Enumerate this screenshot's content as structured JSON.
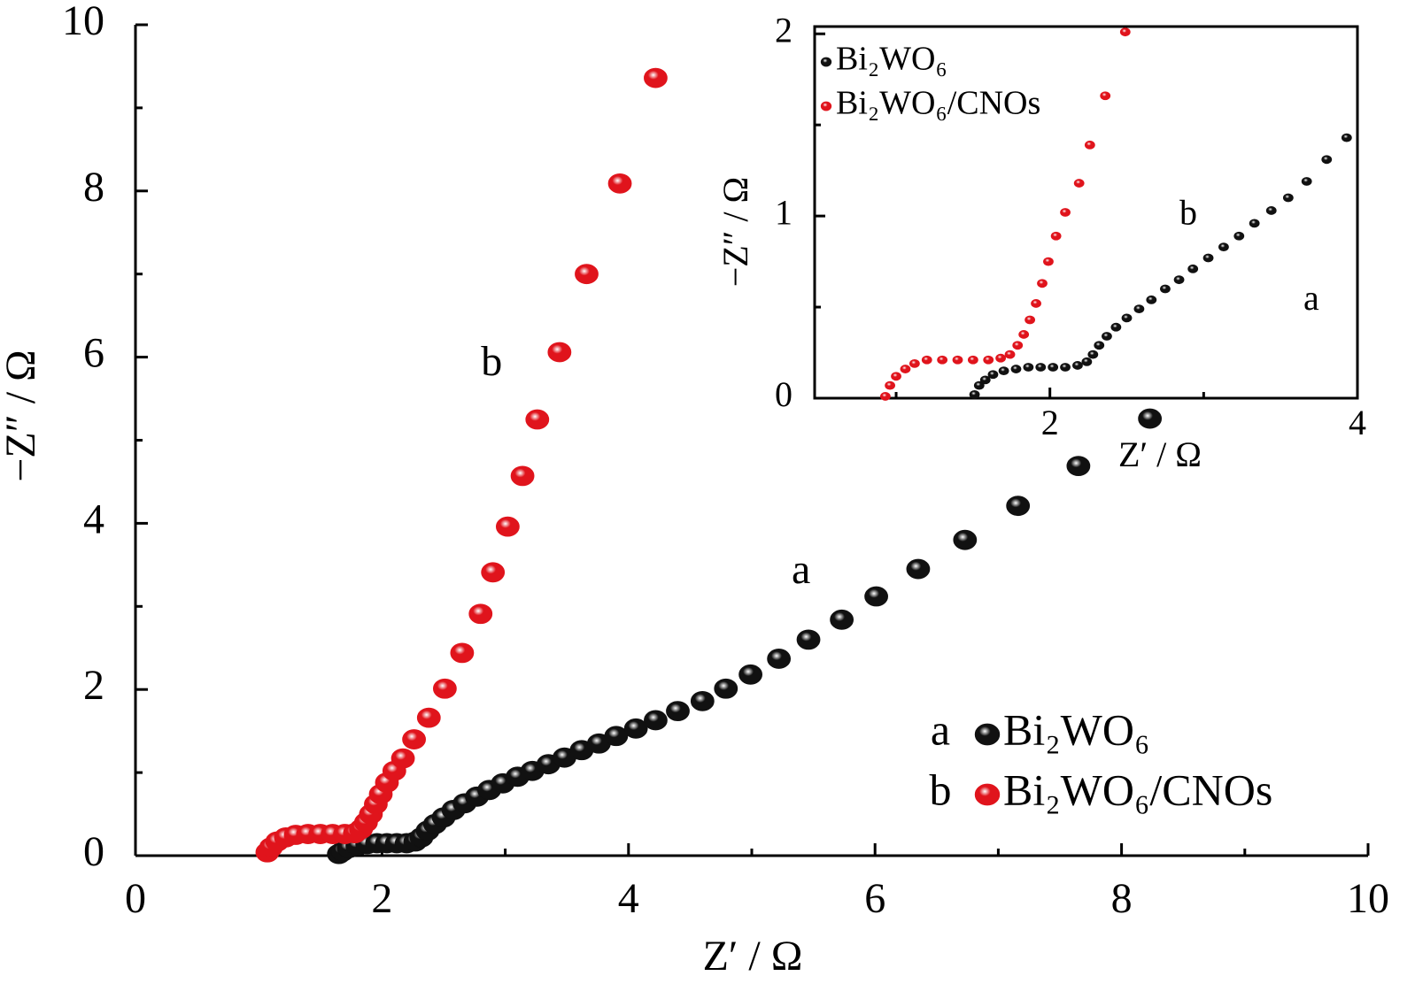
{
  "chart_data": [
    {
      "type": "scatter",
      "xlabel": "Z′ / Ω",
      "ylabel": "−Z″ / Ω",
      "xlim": [
        0,
        10
      ],
      "ylim": [
        0,
        10
      ],
      "xticks": [
        0,
        2,
        4,
        6,
        8,
        10
      ],
      "yticks": [
        0,
        2,
        4,
        6,
        8,
        10
      ],
      "xminor_ticks": [
        1,
        3,
        5,
        7,
        9
      ],
      "yminor_ticks": [
        1,
        3,
        5,
        7,
        9
      ],
      "legend": "lower right",
      "legend_prefixes": [
        "a",
        "b"
      ],
      "annotations": [
        {
          "text": "a",
          "x": 5.4,
          "y": 3.4
        },
        {
          "text": "b",
          "x": 2.89,
          "y": 5.9
        }
      ],
      "series": [
        {
          "name": "Bi₂WO₆",
          "color": "#111111",
          "x": [
            1.65,
            1.68,
            1.73,
            1.8,
            1.88,
            1.96,
            2.04,
            2.12,
            2.2,
            2.27,
            2.32,
            2.37,
            2.43,
            2.5,
            2.58,
            2.67,
            2.77,
            2.87,
            2.98,
            3.1,
            3.22,
            3.35,
            3.48,
            3.62,
            3.76,
            3.9,
            4.06,
            4.22,
            4.4,
            4.6,
            4.79,
            4.99,
            5.22,
            5.46,
            5.73,
            6.01,
            6.35,
            6.73,
            7.16,
            7.65,
            8.23
          ],
          "values": [
            0.02,
            0.05,
            0.09,
            0.12,
            0.14,
            0.15,
            0.15,
            0.15,
            0.15,
            0.17,
            0.22,
            0.3,
            0.38,
            0.46,
            0.55,
            0.63,
            0.71,
            0.79,
            0.87,
            0.95,
            1.02,
            1.1,
            1.18,
            1.27,
            1.35,
            1.44,
            1.53,
            1.63,
            1.74,
            1.86,
            2.01,
            2.18,
            2.37,
            2.6,
            2.84,
            3.12,
            3.45,
            3.8,
            4.21,
            4.69,
            5.26
          ]
        },
        {
          "name": "Bi₂WO₆/CNOs",
          "color": "#e0141c",
          "x": [
            1.07,
            1.1,
            1.15,
            1.22,
            1.3,
            1.4,
            1.5,
            1.6,
            1.7,
            1.78,
            1.83,
            1.87,
            1.91,
            1.95,
            1.99,
            2.04,
            2.1,
            2.17,
            2.26,
            2.38,
            2.51,
            2.65,
            2.8,
            2.9,
            3.02,
            3.14,
            3.26,
            3.44,
            3.66,
            3.93,
            4.22
          ],
          "values": [
            0.04,
            0.1,
            0.17,
            0.22,
            0.25,
            0.26,
            0.26,
            0.26,
            0.26,
            0.27,
            0.32,
            0.4,
            0.5,
            0.62,
            0.74,
            0.88,
            1.02,
            1.17,
            1.4,
            1.66,
            2.01,
            2.44,
            2.91,
            3.41,
            3.96,
            4.57,
            5.25,
            6.06,
            7.0,
            8.09,
            9.36
          ]
        }
      ]
    },
    {
      "type": "scatter",
      "xlabel": "Z′ / Ω",
      "ylabel": "−Z″ / Ω",
      "xlim": [
        0.47,
        4.0
      ],
      "ylim": [
        0,
        2.04
      ],
      "xticks": [
        2,
        4
      ],
      "yticks": [
        0,
        1,
        2
      ],
      "xminor_ticks": [
        1,
        3
      ],
      "yminor_ticks": [
        0.5,
        1.5
      ],
      "legend": "upper left",
      "annotations": [
        {
          "text": "a",
          "x": 3.7,
          "y": 0.53
        },
        {
          "text": "b",
          "x": 2.9,
          "y": 1.0
        }
      ],
      "series": [
        {
          "name": "Bi₂WO₆",
          "color": "#111111",
          "x": [
            1.51,
            1.54,
            1.58,
            1.63,
            1.7,
            1.78,
            1.86,
            1.94,
            2.02,
            2.1,
            2.18,
            2.24,
            2.28,
            2.32,
            2.37,
            2.43,
            2.5,
            2.58,
            2.66,
            2.75,
            2.84,
            2.93,
            3.03,
            3.13,
            3.23,
            3.33,
            3.44,
            3.55,
            3.67,
            3.8,
            3.93
          ],
          "values": [
            0.02,
            0.07,
            0.1,
            0.13,
            0.15,
            0.16,
            0.17,
            0.17,
            0.17,
            0.17,
            0.18,
            0.2,
            0.24,
            0.29,
            0.34,
            0.39,
            0.44,
            0.49,
            0.54,
            0.6,
            0.65,
            0.71,
            0.77,
            0.83,
            0.89,
            0.96,
            1.03,
            1.1,
            1.19,
            1.31,
            1.43
          ]
        },
        {
          "name": "Bi₂WO₆/CNOs",
          "color": "#e0141c",
          "x": [
            0.93,
            0.96,
            1.0,
            1.06,
            1.12,
            1.2,
            1.3,
            1.4,
            1.5,
            1.6,
            1.68,
            1.74,
            1.79,
            1.83,
            1.87,
            1.91,
            1.95,
            1.99,
            2.04,
            2.1,
            2.19,
            2.26,
            2.36,
            2.49
          ],
          "values": [
            0.01,
            0.07,
            0.12,
            0.16,
            0.19,
            0.21,
            0.21,
            0.21,
            0.21,
            0.21,
            0.22,
            0.24,
            0.29,
            0.35,
            0.43,
            0.52,
            0.63,
            0.75,
            0.89,
            1.02,
            1.18,
            1.39,
            1.66,
            2.01
          ]
        }
      ]
    }
  ]
}
